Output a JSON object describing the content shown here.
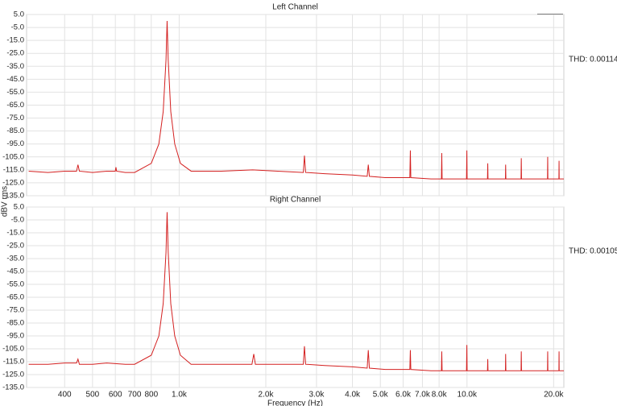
{
  "chart_data": [
    {
      "type": "line",
      "title": "Left Channel",
      "ylabel": "dBV rms",
      "annotation": "THD: 0.00114",
      "log_x": true,
      "grid": true,
      "xlim": [
        295,
        21700
      ],
      "xticks": [
        400,
        500,
        600,
        700,
        800,
        1000,
        2000,
        3000,
        4000,
        5000,
        6000,
        7000,
        8000,
        10000,
        20000
      ],
      "ylim": [
        -135,
        5
      ],
      "yticks": [
        {
          "value": 5,
          "label": "5.0"
        },
        {
          "value": -5,
          "label": "-5.0"
        },
        {
          "value": -15,
          "label": "-15.0"
        },
        {
          "value": -25,
          "label": "-25.0"
        },
        {
          "value": -35,
          "label": "-35.0"
        },
        {
          "value": -45,
          "label": "-45.0"
        },
        {
          "value": -55,
          "label": "-55.0"
        },
        {
          "value": -65,
          "label": "-65.0"
        },
        {
          "value": -75,
          "label": "-75.0"
        },
        {
          "value": -85,
          "label": "-85.0"
        },
        {
          "value": -95,
          "label": "-95.0"
        },
        {
          "value": -105,
          "label": "-105.0"
        },
        {
          "value": -115,
          "label": "-115.0"
        },
        {
          "value": -125,
          "label": "-125.0"
        },
        {
          "value": -135,
          "label": "-135.0"
        }
      ],
      "x": [
        300,
        350,
        400,
        440,
        445,
        450,
        500,
        560,
        600,
        603,
        606,
        650,
        700,
        800,
        850,
        880,
        900,
        908,
        916,
        935,
        965,
        1010,
        1100,
        1400,
        1800,
        2200,
        2700,
        2724,
        2750,
        3200,
        4000,
        4500,
        4540,
        4580,
        5200,
        5700,
        6330,
        6356,
        6380,
        7500,
        8150,
        8172,
        8195,
        9000,
        9960,
        9988,
        10010,
        11780,
        11807,
        11830,
        13600,
        13623,
        13650,
        15410,
        15439,
        15470,
        17500,
        19040,
        19071,
        19100,
        20860,
        20887,
        20910,
        21700
      ],
      "series": [
        {
          "color": "#d42020",
          "values": [
            -116,
            -117,
            -116,
            -116,
            -111,
            -116,
            -117,
            -116,
            -116,
            -113,
            -116,
            -117,
            -117,
            -110,
            -95,
            -70,
            -30,
            0,
            -30,
            -70,
            -95,
            -110,
            -116,
            -116,
            -115,
            -116,
            -117,
            -104,
            -117,
            -118,
            -119,
            -120,
            -111,
            -120,
            -121,
            -121,
            -121,
            -100,
            -121,
            -122,
            -122,
            -102,
            -122,
            -122,
            -122,
            -100,
            -122,
            -122,
            -110,
            -122,
            -122,
            -111,
            -122,
            -122,
            -106,
            -122,
            -122,
            -122,
            -105,
            -122,
            -122,
            -108,
            -122,
            -122
          ]
        }
      ]
    },
    {
      "type": "line",
      "title": "Right Channel",
      "xlabel": "Frequency (Hz)",
      "annotation": "THD: 0.00105",
      "log_x": true,
      "grid": true,
      "xlim": [
        295,
        21700
      ],
      "xticks": [
        400,
        500,
        600,
        700,
        800,
        {
          "value": 1000,
          "label": "1.0k"
        },
        {
          "value": 2000,
          "label": "2.0k"
        },
        {
          "value": 3000,
          "label": "3.0k"
        },
        {
          "value": 4000,
          "label": "4.0k"
        },
        {
          "value": 5000,
          "label": "5.0k"
        },
        {
          "value": 6000,
          "label": "6.0k"
        },
        {
          "value": 7000,
          "label": "7.0k"
        },
        {
          "value": 8000,
          "label": "8.0k"
        },
        {
          "value": 10000,
          "label": "10.0k"
        },
        {
          "value": 20000,
          "label": "20.0k"
        }
      ],
      "ylim": [
        -135,
        5
      ],
      "yticks": [
        {
          "value": 5,
          "label": "5.0"
        },
        {
          "value": -5,
          "label": "-5.0"
        },
        {
          "value": -15,
          "label": "-15.0"
        },
        {
          "value": -25,
          "label": "-25.0"
        },
        {
          "value": -35,
          "label": "-35.0"
        },
        {
          "value": -45,
          "label": "-45.0"
        },
        {
          "value": -55,
          "label": "-55.0"
        },
        {
          "value": -65,
          "label": "-65.0"
        },
        {
          "value": -75,
          "label": "-75.0"
        },
        {
          "value": -85,
          "label": "-85.0"
        },
        {
          "value": -95,
          "label": "-95.0"
        },
        {
          "value": -105,
          "label": "-105.0"
        },
        {
          "value": -115,
          "label": "-115.0"
        },
        {
          "value": -125,
          "label": "-125.0"
        },
        {
          "value": -135,
          "label": "-135.0"
        }
      ],
      "x": [
        300,
        350,
        400,
        440,
        445,
        450,
        500,
        560,
        650,
        700,
        800,
        850,
        880,
        900,
        908,
        916,
        935,
        965,
        1010,
        1100,
        1400,
        1790,
        1816,
        1840,
        2200,
        2700,
        2724,
        2750,
        3200,
        4000,
        4500,
        4540,
        4580,
        5200,
        5700,
        6330,
        6356,
        6380,
        7500,
        8150,
        8172,
        8195,
        9000,
        9960,
        9988,
        10010,
        11780,
        11807,
        11830,
        13600,
        13623,
        13650,
        15410,
        15439,
        15470,
        17500,
        19040,
        19071,
        19100,
        20860,
        20887,
        20910,
        21700
      ],
      "series": [
        {
          "color": "#d42020",
          "values": [
            -117,
            -117,
            -116,
            -116,
            -113,
            -117,
            -117,
            -116,
            -117,
            -117,
            -110,
            -95,
            -70,
            -30,
            1,
            -30,
            -70,
            -95,
            -110,
            -117,
            -117,
            -117,
            -109,
            -117,
            -117,
            -117,
            -103,
            -117,
            -118,
            -119,
            -120,
            -106,
            -120,
            -121,
            -121,
            -121,
            -106,
            -121,
            -122,
            -122,
            -107,
            -122,
            -122,
            -122,
            -102,
            -122,
            -122,
            -113,
            -122,
            -122,
            -109,
            -122,
            -122,
            -107,
            -122,
            -122,
            -122,
            -107,
            -122,
            -122,
            -107,
            -122,
            -122
          ]
        }
      ]
    }
  ]
}
